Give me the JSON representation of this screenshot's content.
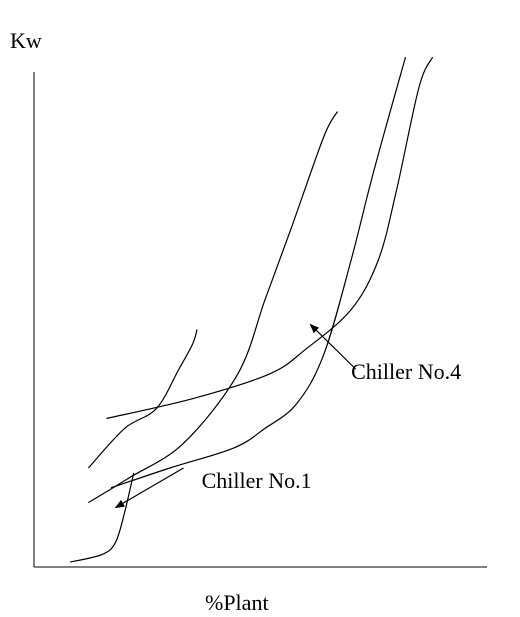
{
  "chart_data": {
    "type": "line",
    "title": "",
    "xlabel": "%Plant",
    "ylabel": "Kw",
    "xlim": [
      0,
      100
    ],
    "ylim": [
      0,
      100
    ],
    "grid": false,
    "legend": "none",
    "series": [
      {
        "values": [
          [
            8,
            1
          ],
          [
            15,
            2.5
          ],
          [
            18,
            5
          ],
          [
            20,
            11
          ],
          [
            22,
            19
          ]
        ]
      },
      {
        "values": [
          [
            12,
            13
          ],
          [
            21,
            18
          ],
          [
            33,
            25
          ],
          [
            45,
            39
          ],
          [
            51,
            54
          ],
          [
            57,
            69
          ],
          [
            64,
            87
          ],
          [
            67,
            92
          ]
        ]
      },
      {
        "values": [
          [
            12,
            20
          ],
          [
            20,
            28
          ],
          [
            27,
            32
          ],
          [
            32,
            40
          ],
          [
            35,
            45
          ],
          [
            36,
            48
          ]
        ]
      },
      {
        "values": [
          [
            16,
            30
          ],
          [
            35,
            34
          ],
          [
            52,
            39
          ],
          [
            60,
            44
          ],
          [
            70,
            52
          ],
          [
            76,
            62
          ],
          [
            80,
            76
          ],
          [
            85,
            97
          ],
          [
            88,
            103
          ]
        ]
      },
      {
        "values": [
          [
            17,
            16
          ],
          [
            30,
            20
          ],
          [
            44,
            24
          ],
          [
            51,
            28
          ],
          [
            58,
            33
          ],
          [
            64,
            43
          ],
          [
            70,
            62
          ],
          [
            75,
            80
          ],
          [
            82,
            103
          ]
        ]
      }
    ],
    "annotations": [
      {
        "text": "Chiller No.1",
        "x": 37,
        "y": 16,
        "arrow_from": [
          33,
          20
        ],
        "arrow_to": [
          18,
          12
        ]
      },
      {
        "text": "Chiller No.4",
        "x": 70,
        "y": 38,
        "arrow_from": [
          71,
          40
        ],
        "arrow_to": [
          61,
          49
        ]
      }
    ]
  }
}
